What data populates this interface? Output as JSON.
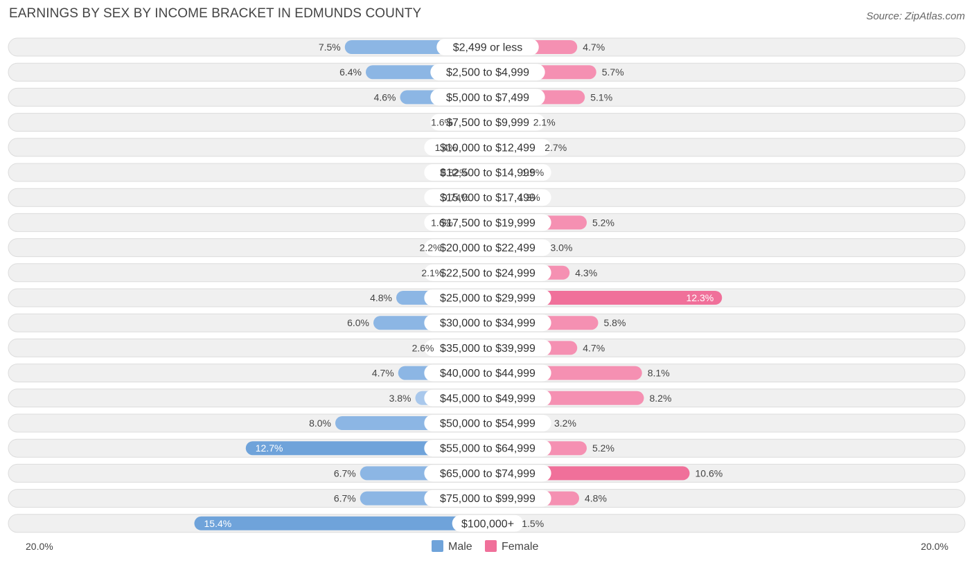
{
  "header": {
    "title": "EARNINGS BY SEX BY INCOME BRACKET IN EDMUNDS COUNTY",
    "source": "Source: ZipAtlas.com"
  },
  "chart_data": {
    "type": "bar",
    "orientation": "horizontal-diverging",
    "title": "EARNINGS BY SEX BY INCOME BRACKET IN EDMUNDS COUNTY",
    "categories": [
      "$2,499 or less",
      "$2,500 to $4,999",
      "$5,000 to $7,499",
      "$7,500 to $9,999",
      "$10,000 to $12,499",
      "$12,500 to $14,999",
      "$15,000 to $17,499",
      "$17,500 to $19,999",
      "$20,000 to $22,499",
      "$22,500 to $24,999",
      "$25,000 to $29,999",
      "$30,000 to $34,999",
      "$35,000 to $39,999",
      "$40,000 to $44,999",
      "$45,000 to $49,999",
      "$50,000 to $54,999",
      "$55,000 to $64,999",
      "$65,000 to $74,999",
      "$75,000 to $99,999",
      "$100,000+"
    ],
    "series": [
      {
        "name": "Male",
        "values": [
          7.5,
          6.4,
          4.6,
          1.6,
          1.4,
          0.82,
          0.74,
          1.6,
          2.2,
          2.1,
          4.8,
          6.0,
          2.6,
          4.7,
          3.8,
          8.0,
          12.7,
          6.7,
          6.7,
          15.4
        ],
        "labels": [
          "7.5%",
          "6.4%",
          "4.6%",
          "1.6%",
          "1.4%",
          "0.82%",
          "0.74%",
          "1.6%",
          "2.2%",
          "2.1%",
          "4.8%",
          "6.0%",
          "2.6%",
          "4.7%",
          "3.8%",
          "8.0%",
          "12.7%",
          "6.7%",
          "6.7%",
          "15.4%"
        ]
      },
      {
        "name": "Female",
        "values": [
          4.7,
          5.7,
          5.1,
          2.1,
          2.7,
          1.5,
          1.3,
          5.2,
          3.0,
          4.3,
          12.3,
          5.8,
          4.7,
          8.1,
          8.2,
          3.2,
          5.2,
          10.6,
          4.8,
          1.5
        ],
        "labels": [
          "4.7%",
          "5.7%",
          "5.1%",
          "2.1%",
          "2.7%",
          "1.5%",
          "1.3%",
          "5.2%",
          "3.0%",
          "4.3%",
          "12.3%",
          "5.8%",
          "4.7%",
          "8.1%",
          "8.2%",
          "3.2%",
          "5.2%",
          "10.6%",
          "4.8%",
          "1.5%"
        ]
      }
    ],
    "axis": {
      "left_label": "20.0%",
      "right_label": "20.0%",
      "range": [
        -20,
        20
      ],
      "unit": "%"
    },
    "legend": {
      "position": "bottom-center",
      "items": [
        "Male",
        "Female"
      ]
    },
    "colors": {
      "male_dark": "#6fa3da",
      "male_light": "#a9c8ec",
      "female_dark": "#f0709a",
      "female_light": "#f6a7c1",
      "row_bg": "#f0f0f0",
      "row_border": "#dcdcdc"
    }
  }
}
